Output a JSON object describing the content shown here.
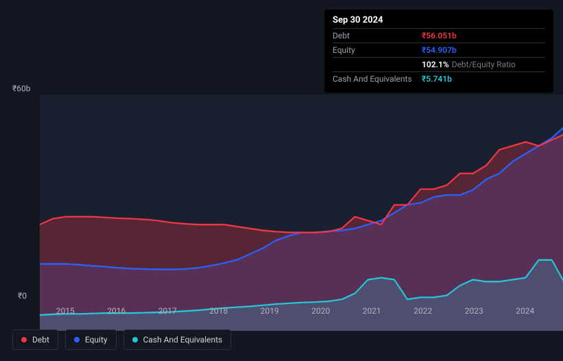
{
  "tooltip": {
    "date": "Sep 30 2024",
    "rows": [
      {
        "label": "Debt",
        "value": "₹56.051b",
        "value_cls": "tooltip-value-debt"
      },
      {
        "label": "Equity",
        "value": "₹54.907b",
        "value_cls": "tooltip-value-equity"
      },
      {
        "label": "",
        "value": "102.1%",
        "value_cls": "tooltip-ratio",
        "suffix": "Debt/Equity Ratio"
      },
      {
        "label": "Cash And Equivalents",
        "value": "₹5.741b",
        "value_cls": "tooltip-value-cash"
      }
    ]
  },
  "chart": {
    "background_color": "#131722",
    "plot_background_color": "#1b2030",
    "y_axis": {
      "top_label": "₹60b",
      "bottom_label": "₹0",
      "max": 60,
      "min": 0,
      "label_color": "#b0b4bd",
      "label_fontsize": 12
    },
    "x_axis": {
      "ticks": [
        "2015",
        "2016",
        "2017",
        "2018",
        "2019",
        "2020",
        "2021",
        "2022",
        "2023",
        "2024"
      ],
      "label_color": "#b0b4bd",
      "label_fontsize": 12
    },
    "series": {
      "debt": {
        "color": "#f23645",
        "fill": "rgba(242,54,69,0.28)",
        "line_width": 2,
        "values": [
          27,
          28.5,
          29,
          29,
          29,
          28.8,
          28.6,
          28.5,
          28.3,
          28,
          27.5,
          27.2,
          27,
          27,
          27,
          26.5,
          26,
          25.5,
          25.2,
          25,
          25,
          25,
          25.2,
          26,
          29,
          28,
          27,
          32,
          32,
          36,
          36,
          37,
          40,
          40,
          42,
          46,
          47,
          48,
          47,
          48.5,
          50,
          56
        ]
      },
      "equity": {
        "color": "#2962ff",
        "fill": "rgba(41,98,255,0.22)",
        "line_width": 2,
        "values": [
          17,
          17,
          17,
          16.8,
          16.5,
          16.3,
          16,
          15.8,
          15.7,
          15.6,
          15.6,
          15.7,
          16,
          16.5,
          17.2,
          18,
          19.5,
          21,
          23,
          24.2,
          25,
          25,
          25.3,
          25.5,
          26,
          27,
          28,
          30,
          32,
          32.5,
          34,
          34.5,
          34.5,
          35.8,
          38.5,
          40,
          43,
          45,
          47,
          49,
          52,
          54.5
        ]
      },
      "cash": {
        "color": "#26c6da",
        "fill": "rgba(38,198,218,0.20)",
        "line_width": 2,
        "values": [
          4,
          4.2,
          4.3,
          4.3,
          4.4,
          4.5,
          4.5,
          4.5,
          4.6,
          4.7,
          4.8,
          5,
          5.2,
          5.5,
          5.8,
          6,
          6.2,
          6.5,
          6.8,
          7,
          7.2,
          7.3,
          7.5,
          8,
          9.5,
          13,
          13.5,
          13,
          8,
          8.5,
          8.5,
          9,
          11.5,
          13,
          12.5,
          12.5,
          13,
          13.5,
          18,
          18,
          12,
          6
        ]
      }
    },
    "legend": [
      {
        "label": "Debt",
        "color": "#f23645"
      },
      {
        "label": "Equity",
        "color": "#2962ff"
      },
      {
        "label": "Cash And Equivalents",
        "color": "#26c6da"
      }
    ]
  }
}
